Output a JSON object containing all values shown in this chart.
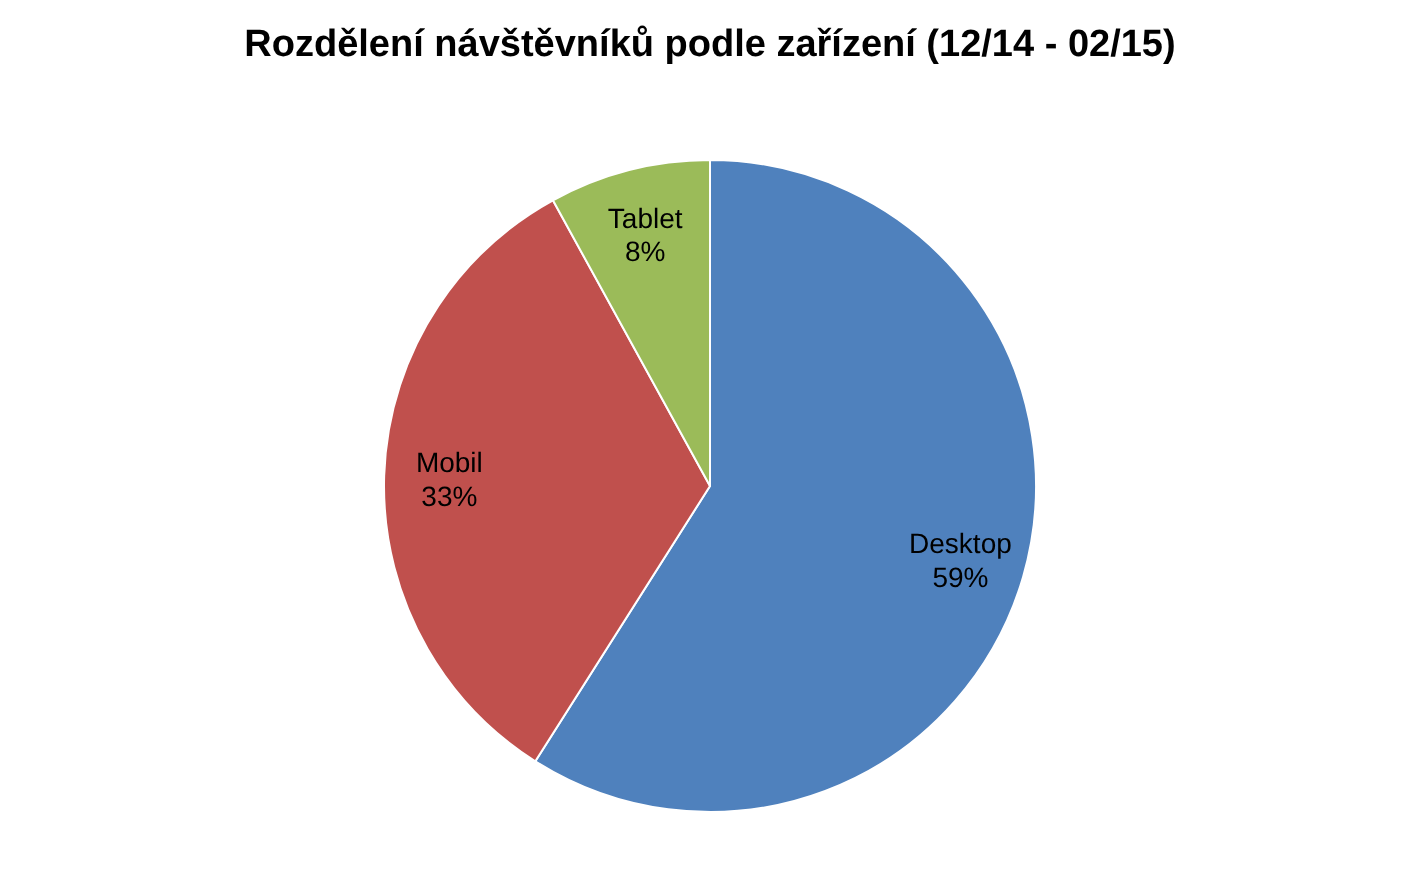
{
  "chart_data": {
    "type": "pie",
    "title": "Rozdělení návštěvníků podle zařízení (12/14 - 02/15)",
    "categories": [
      "Desktop",
      "Mobil",
      "Tablet"
    ],
    "values": [
      59,
      33,
      8
    ],
    "colors": [
      "#4f81bd",
      "#c0504d",
      "#9bbb59"
    ],
    "value_labels": [
      "59%",
      "33%",
      "8%"
    ],
    "legend": false
  }
}
